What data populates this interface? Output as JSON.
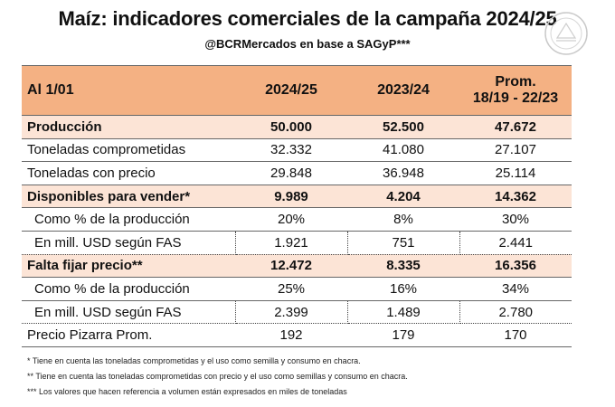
{
  "title": "Maíz: indicadores comerciales de la campaña 2024/25",
  "subtitle": "@BCRMercados en base a SAGyP***",
  "header": {
    "col0": "Al 1/01",
    "col1": "2024/25",
    "col2": "2023/24",
    "col3_line1": "Prom.",
    "col3_line2": "18/19 - 22/23"
  },
  "rows": [
    {
      "label": "Producción",
      "v1": "50.000",
      "v2": "52.500",
      "v3": "47.672"
    },
    {
      "label": "Toneladas comprometidas",
      "v1": "32.332",
      "v2": "41.080",
      "v3": "27.107"
    },
    {
      "label": "Toneladas con precio",
      "v1": "29.848",
      "v2": "36.948",
      "v3": "25.114"
    },
    {
      "label": "Disponibles para vender*",
      "v1": "9.989",
      "v2": "4.204",
      "v3": "14.362"
    },
    {
      "label": "Como % de la producción",
      "v1": "20%",
      "v2": "8%",
      "v3": "30%"
    },
    {
      "label": "En mill. USD según FAS",
      "v1": "1.921",
      "v2": "751",
      "v3": "2.441"
    },
    {
      "label": "Falta fijar precio**",
      "v1": "12.472",
      "v2": "8.335",
      "v3": "16.356"
    },
    {
      "label": "Como % de la producción",
      "v1": "25%",
      "v2": "16%",
      "v3": "34%"
    },
    {
      "label": "En mill. USD según FAS",
      "v1": "2.399",
      "v2": "1.489",
      "v3": "2.780"
    },
    {
      "label": "Precio Pizarra Prom.",
      "v1": "192",
      "v2": "179",
      "v3": "170"
    }
  ],
  "notes": [
    "* Tiene en cuenta las toneladas comprometidas y el uso como semilla y consumo en chacra.",
    "** Tiene en cuenta las toneladas comprometidas con precio y el uso como semillas y consumo en chacra.",
    "*** Los valores que hacen referencia a volumen están expresados en miles de toneladas"
  ],
  "colors": {
    "header_bg": "#f4b183",
    "highlight_bg": "#fce4d6"
  }
}
